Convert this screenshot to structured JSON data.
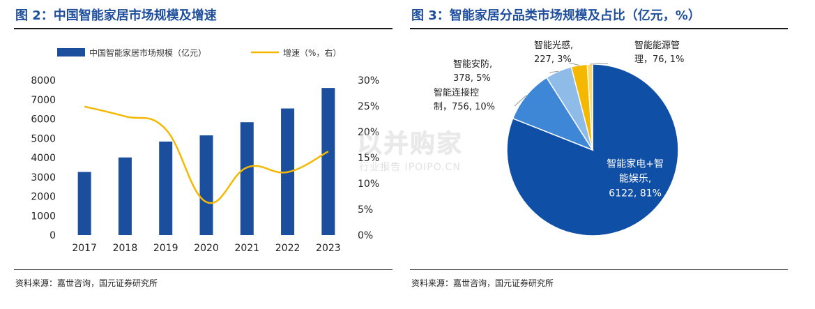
{
  "left_panel": {
    "title": "图 2：中国智能家居市场规模及增速",
    "source": "资料来源：嘉世咨询，国元证券研究所"
  },
  "right_panel": {
    "title": "图 3：智能家居分品类市场规模及占比（亿元，%）",
    "source": "资料来源：嘉世咨询，国元证券研究所"
  },
  "watermark": {
    "main": "以并购家",
    "sub": "行业报告 IPOIPO.CN"
  },
  "colors": {
    "bar": "#1b4f9e",
    "line": "#f5b800",
    "title": "#1f4e9c"
  },
  "chart_data": [
    {
      "type": "bar",
      "categories": [
        "2017",
        "2018",
        "2019",
        "2020",
        "2021",
        "2022",
        "2023"
      ],
      "series": [
        {
          "name": "中国智能家居市场规模（亿元）",
          "type": "bar",
          "axis": "left",
          "values": [
            3260,
            4010,
            4830,
            5150,
            5830,
            6540,
            7600
          ]
        },
        {
          "name": "增速（%，右）",
          "type": "line",
          "axis": "right",
          "values": [
            24.9,
            23.0,
            20.5,
            6.4,
            13.1,
            12.2,
            16.2
          ]
        }
      ],
      "ylim": [
        0,
        8000
      ],
      "y_ticks": [
        "0",
        "1000",
        "2000",
        "3000",
        "4000",
        "5000",
        "6000",
        "7000",
        "8000"
      ],
      "y2lim": [
        0,
        30
      ],
      "y2_ticks": [
        "0%",
        "5%",
        "10%",
        "15%",
        "20%",
        "25%",
        "30%"
      ],
      "legend_position": "top",
      "grid": false
    },
    {
      "type": "pie",
      "slices": [
        {
          "label_lines": [
            "智能家电+智",
            "能娱乐,",
            "6122, 81%"
          ],
          "value": 6122,
          "percent": 81,
          "color": "#0f4fa6",
          "label_inside": true
        },
        {
          "label_lines": [
            "智能连接控",
            "制，756, 10%"
          ],
          "value": 756,
          "percent": 10,
          "color": "#3d87d6",
          "label_inside": false
        },
        {
          "label_lines": [
            "智能安防,",
            "378, 5%"
          ],
          "value": 378,
          "percent": 5,
          "color": "#8fbbe9",
          "label_inside": false
        },
        {
          "label_lines": [
            "智能光感,",
            "227, 3%"
          ],
          "value": 227,
          "percent": 3,
          "color": "#f5b800",
          "label_inside": false
        },
        {
          "label_lines": [
            "智能能源管",
            "理，76, 1%"
          ],
          "value": 76,
          "percent": 1,
          "color": "#ffd966",
          "label_inside": false
        }
      ]
    }
  ]
}
